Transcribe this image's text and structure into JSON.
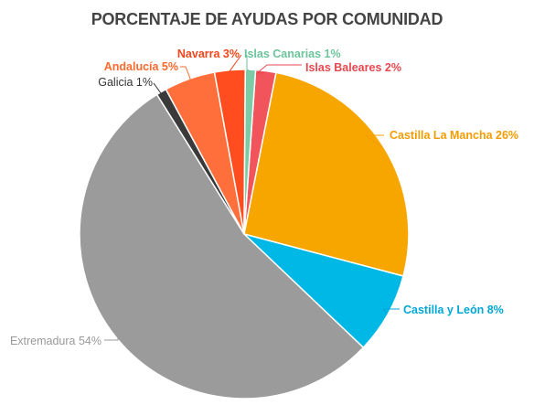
{
  "chart_data": {
    "type": "pie",
    "title": "PORCENTAJE DE AYUDAS POR COMUNIDAD",
    "start_category": "Islas Baleares",
    "slices": [
      {
        "label": "Islas Baleares 2%",
        "category": "Islas Baleares",
        "value": 2,
        "color": "#F2545B",
        "label_color": "#E8474F"
      },
      {
        "label": "Castilla La Mancha 26%",
        "category": "Castilla La Mancha",
        "value": 26,
        "color": "#F7A600",
        "label_color": "#F39C00"
      },
      {
        "label": "Castilla y León 8%",
        "category": "Castilla y León",
        "value": 8,
        "color": "#00B8E6",
        "label_color": "#00A8D8"
      },
      {
        "label": "Extremadura 54%",
        "category": "Extremadura",
        "value": 54,
        "color": "#9B9B9B",
        "label_color": "#999999"
      },
      {
        "label": "Galicia 1%",
        "category": "Galicia",
        "value": 1,
        "color": "#3A3A3A",
        "label_color": "#333333"
      },
      {
        "label": "Andalucía 5%",
        "category": "Andalucía",
        "value": 5,
        "color": "#FF6F3C",
        "label_color": "#FF6A2F"
      },
      {
        "label": "Navarra 3%",
        "category": "Navarra",
        "value": 3,
        "color": "#FF4D1F",
        "label_color": "#F2451A"
      },
      {
        "label": "Islas Canarias 1%",
        "category": "Islas Canarias",
        "value": 1,
        "color": "#7ACBA6",
        "label_color": "#6CC49B"
      }
    ]
  }
}
